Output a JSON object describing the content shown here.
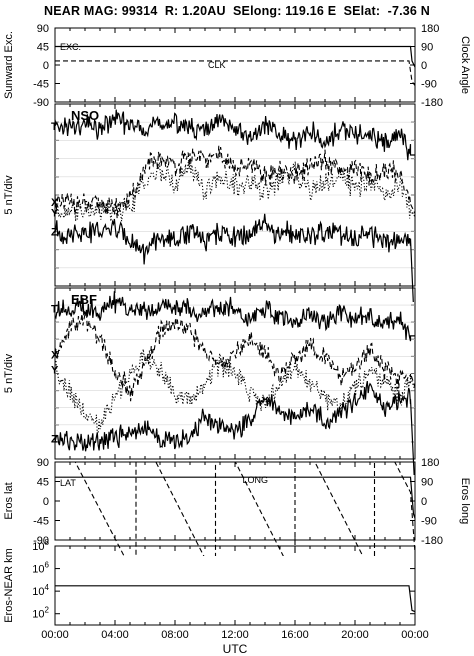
{
  "header": {
    "title": "NEAR MAG: 99314  R: 1.20AU  SElong: 119.16 E  SElat:  -7.36 N"
  },
  "chart_data": [
    {
      "type": "line",
      "panel": "sunward-clock",
      "ylabel": "Sunward Exc.",
      "ylabel_right": "Clock Angle",
      "ylim": [
        -90,
        90
      ],
      "yticks": [
        90,
        45,
        0,
        -45,
        -90
      ],
      "yticks_right": [
        180,
        90,
        0,
        -90,
        -180
      ],
      "annotations": [
        "EXC.",
        "CLK"
      ],
      "series": [
        {
          "name": "EXC.",
          "style": "solid",
          "x": [
            0,
            23.7,
            23.8,
            24.0
          ],
          "y": [
            45,
            45,
            10,
            -5
          ]
        },
        {
          "name": "CLK",
          "style": "dashed",
          "x": [
            0,
            23.6,
            23.8,
            24.0
          ],
          "y": [
            10,
            10,
            -40,
            -50
          ]
        }
      ]
    },
    {
      "type": "line",
      "panel": "nso",
      "ylabel": "5 nT/div",
      "annotations": [
        "NSO"
      ],
      "series_labels": [
        "T",
        "X",
        "Y",
        "Z"
      ],
      "series": [
        {
          "name": "T",
          "style": "solid",
          "x": [
            0,
            1,
            2,
            3,
            4,
            5,
            6,
            7,
            8,
            9,
            10,
            11,
            12,
            13,
            14,
            15,
            16,
            17,
            18,
            19,
            20,
            21,
            22,
            23,
            23.7,
            24
          ],
          "y": [
            8.8,
            8.7,
            8.9,
            8.6,
            9.2,
            8.8,
            8.7,
            9.0,
            8.9,
            8.8,
            8.5,
            9.0,
            8.7,
            8.2,
            8.8,
            8.3,
            8.0,
            8.5,
            7.8,
            8.6,
            8.2,
            8.4,
            8.0,
            8.3,
            7.2,
            7.2
          ]
        },
        {
          "name": "X",
          "style": "dashed",
          "x": [
            0,
            1,
            2,
            3,
            4,
            5,
            6,
            7,
            8,
            9,
            10,
            11,
            12,
            13,
            14,
            15,
            16,
            17,
            18,
            19,
            20,
            21,
            22,
            23,
            23.7,
            24
          ],
          "y": [
            4.5,
            4.6,
            4.4,
            4.5,
            4.3,
            4.6,
            6.5,
            7.0,
            6.6,
            7.2,
            6.8,
            7.4,
            6.3,
            6.7,
            6.0,
            6.4,
            6.1,
            6.6,
            6.9,
            6.2,
            6.5,
            6.0,
            6.3,
            6.2,
            4.5,
            4.0
          ]
        },
        {
          "name": "Y",
          "style": "dotted",
          "x": [
            0,
            1,
            2,
            3,
            4,
            5,
            6,
            7,
            8,
            9,
            10,
            11,
            12,
            13,
            14,
            15,
            16,
            17,
            18,
            19,
            20,
            21,
            22,
            23,
            23.7,
            24
          ],
          "y": [
            4.2,
            4.3,
            4.1,
            4.2,
            4.0,
            4.3,
            5.8,
            6.3,
            5.6,
            6.6,
            5.2,
            6.1,
            5.4,
            5.9,
            5.0,
            5.8,
            6.2,
            5.3,
            5.7,
            6.0,
            5.4,
            5.8,
            5.1,
            5.6,
            4.2,
            3.8
          ]
        },
        {
          "name": "Z",
          "style": "solid",
          "x": [
            0,
            1,
            2,
            3,
            4,
            5,
            6,
            7,
            8,
            9,
            10,
            11,
            12,
            13,
            14,
            15,
            16,
            17,
            18,
            19,
            20,
            21,
            22,
            23,
            23.7,
            24
          ],
          "y": [
            3.0,
            2.8,
            3.1,
            2.9,
            3.2,
            2.7,
            1.8,
            2.6,
            2.4,
            3.0,
            2.5,
            2.9,
            2.6,
            2.9,
            3.3,
            2.8,
            3.1,
            2.6,
            3.0,
            2.8,
            2.5,
            2.9,
            2.4,
            2.7,
            2.6,
            -3.0
          ]
        }
      ]
    },
    {
      "type": "line",
      "panel": "ebf",
      "ylabel": "5 nT/div",
      "annotations": [
        "EBF"
      ],
      "series_labels": [
        "T",
        "X",
        "Y",
        "Z"
      ],
      "series": [
        {
          "name": "T",
          "style": "solid",
          "x": [
            0,
            1,
            2,
            3,
            4,
            5,
            6,
            7,
            8,
            9,
            10,
            11,
            12,
            13,
            14,
            15,
            16,
            17,
            18,
            19,
            20,
            21,
            22,
            23,
            23.7,
            24
          ],
          "y": [
            8.8,
            8.7,
            8.9,
            8.6,
            9.2,
            8.8,
            8.7,
            9.0,
            8.9,
            8.8,
            8.5,
            9.0,
            8.7,
            8.2,
            8.8,
            8.3,
            8.0,
            8.5,
            7.8,
            8.6,
            8.2,
            8.4,
            8.0,
            8.3,
            7.2,
            7.2
          ]
        },
        {
          "name": "X",
          "style": "dashed",
          "x": [
            0,
            1,
            2,
            3,
            4,
            5,
            6,
            7,
            8,
            9,
            10,
            11,
            12,
            13,
            14,
            15,
            16,
            17,
            18,
            19,
            20,
            21,
            22,
            23,
            23.7,
            24
          ],
          "y": [
            6.0,
            7.8,
            8.2,
            7.0,
            5.2,
            4.0,
            5.5,
            7.5,
            8.0,
            7.6,
            6.2,
            5.4,
            6.1,
            7.0,
            6.2,
            5.0,
            5.8,
            6.6,
            6.0,
            4.8,
            5.6,
            6.5,
            5.2,
            4.6,
            5.0,
            4.2
          ]
        },
        {
          "name": "Y",
          "style": "dotted",
          "x": [
            0,
            1,
            2,
            3,
            4,
            5,
            6,
            7,
            8,
            9,
            10,
            11,
            12,
            13,
            14,
            15,
            16,
            17,
            18,
            19,
            20,
            21,
            22,
            23,
            23.7,
            24
          ],
          "y": [
            5.4,
            4.0,
            2.5,
            2.0,
            3.6,
            5.0,
            6.0,
            5.2,
            3.8,
            3.4,
            4.5,
            5.6,
            5.0,
            4.0,
            3.2,
            4.4,
            5.4,
            4.6,
            3.5,
            3.0,
            4.2,
            5.0,
            4.4,
            3.6,
            4.8,
            4.0
          ]
        },
        {
          "name": "Z",
          "style": "solid",
          "x": [
            0,
            1,
            2,
            3,
            4,
            5,
            6,
            7,
            8,
            9,
            10,
            11,
            12,
            13,
            14,
            15,
            16,
            17,
            18,
            19,
            20,
            21,
            22,
            23,
            23.7,
            24
          ],
          "y": [
            1.2,
            1.0,
            0.9,
            1.1,
            1.3,
            1.5,
            1.8,
            1.2,
            1.0,
            1.4,
            2.4,
            2.0,
            1.6,
            2.2,
            3.6,
            2.8,
            2.4,
            3.0,
            2.2,
            2.6,
            3.4,
            4.2,
            3.0,
            3.5,
            3.5,
            -2.0
          ]
        }
      ]
    },
    {
      "type": "line",
      "panel": "eros-lat-long",
      "ylabel": "Eros lat",
      "ylabel_right": "Eros long",
      "ylim": [
        -90,
        90
      ],
      "yticks": [
        90,
        45,
        0,
        -45,
        -90
      ],
      "yticks_right": [
        180,
        90,
        0,
        -90,
        -180
      ],
      "annotations": [
        "LAT",
        "LONG"
      ],
      "series": [
        {
          "name": "LAT",
          "style": "solid",
          "x": [
            0,
            23.7,
            23.9,
            24.0
          ],
          "y": [
            55,
            55,
            -30,
            -40
          ]
        },
        {
          "name": "LONG",
          "style": "dashed",
          "x": [
            0,
            5.4,
            5.4,
            10.7,
            10.7,
            16.0,
            16.0,
            21.3,
            21.3,
            23.7,
            24.0
          ],
          "y": [
            180,
            -180,
            180,
            -180,
            180,
            -180,
            180,
            -180,
            180,
            20,
            -120
          ]
        }
      ]
    },
    {
      "type": "line",
      "panel": "eros-near-distance",
      "ylabel": "Eros-NEAR km",
      "scale": "log",
      "ylim": [
        10,
        100000000
      ],
      "yticks": [
        "10^8",
        "10^6",
        "10^4",
        "10^2"
      ],
      "series": [
        {
          "name": "",
          "style": "solid",
          "x": [
            0,
            23.6,
            23.8,
            24.0
          ],
          "y": [
            30000,
            30000,
            200,
            150
          ]
        }
      ]
    }
  ],
  "xaxis": {
    "ticks": [
      "00:00",
      "04:00",
      "08:00",
      "12:00",
      "16:00",
      "20:00",
      "00:00"
    ],
    "label": "UTC"
  }
}
